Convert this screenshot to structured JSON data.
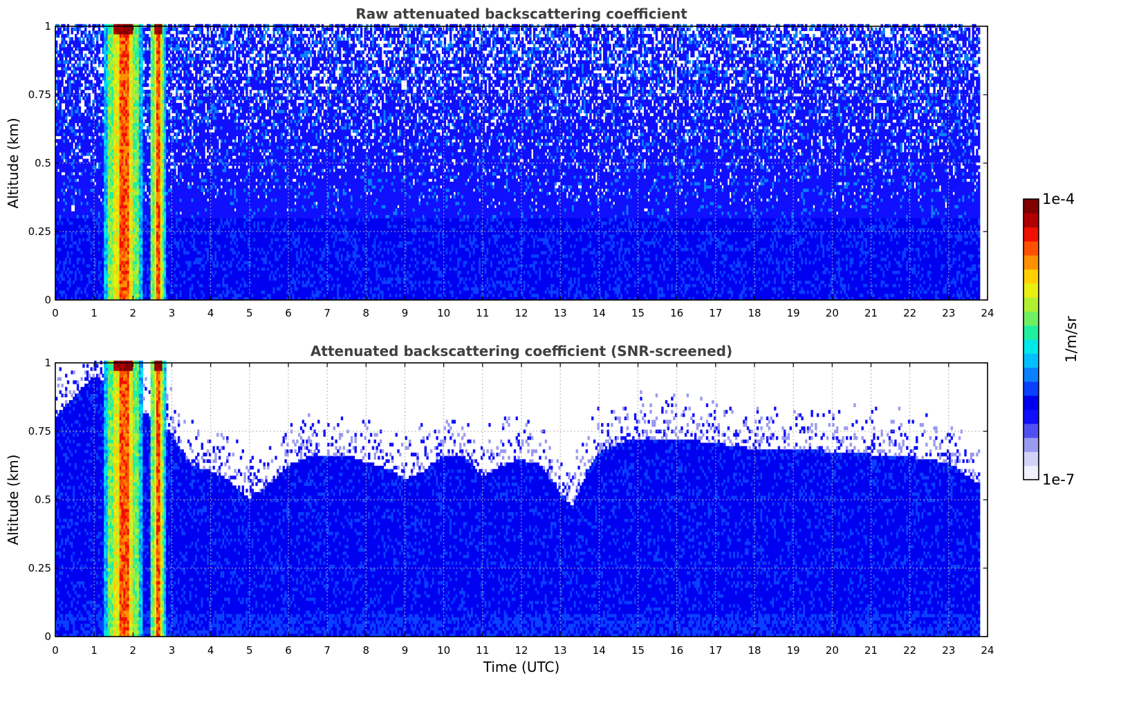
{
  "colorbar": {
    "max_label": "1e-4",
    "min_label": "1e-7",
    "unit_label": "1/m/sr",
    "colormap": [
      "#f0f0ff",
      "#d2d2f8",
      "#9a9af0",
      "#5050f0",
      "#1010ff",
      "#0000f0",
      "#0a40ff",
      "#0a80ff",
      "#00c0ff",
      "#00e8e8",
      "#20f0a0",
      "#70f060",
      "#b0f030",
      "#e8f010",
      "#ffd000",
      "#ff9000",
      "#ff5000",
      "#f01000",
      "#b00000",
      "#800000"
    ]
  },
  "chart_data": [
    {
      "type": "heatmap",
      "title": "Raw attenuated backscattering coefficient",
      "xlabel": "",
      "ylabel": "Altitude (km)",
      "xlim": [
        0,
        24
      ],
      "ylim": [
        0,
        1
      ],
      "xticks": [
        "0",
        "1",
        "2",
        "3",
        "4",
        "5",
        "6",
        "7",
        "8",
        "9",
        "10",
        "11",
        "12",
        "13",
        "14",
        "15",
        "16",
        "17",
        "18",
        "19",
        "20",
        "21",
        "22",
        "23",
        "24"
      ],
      "yticks": [
        "0",
        "0.25",
        "0.5",
        "0.75",
        "1"
      ],
      "grid": true,
      "data_end_time": 23.8,
      "plume_intervals": [
        [
          1.25,
          2.25
        ],
        [
          2.4,
          2.8
        ]
      ],
      "noise_start_altitude": 0.3,
      "screened_boundary": null
    },
    {
      "type": "heatmap",
      "title": "Attenuated backscattering coefficient (SNR-screened)",
      "xlabel": "Time (UTC)",
      "ylabel": "Altitude (km)",
      "xlim": [
        0,
        24
      ],
      "ylim": [
        0,
        1
      ],
      "xticks": [
        "0",
        "1",
        "2",
        "3",
        "4",
        "5",
        "6",
        "7",
        "8",
        "9",
        "10",
        "11",
        "12",
        "13",
        "14",
        "15",
        "16",
        "17",
        "18",
        "19",
        "20",
        "21",
        "22",
        "23",
        "24"
      ],
      "yticks": [
        "0",
        "0.25",
        "0.5",
        "0.75",
        "1"
      ],
      "grid": true,
      "data_end_time": 23.8,
      "plume_intervals": [
        [
          1.25,
          2.25
        ],
        [
          2.4,
          2.8
        ]
      ],
      "noise_start_altitude": null,
      "screened_boundary": {
        "time": [
          0,
          1,
          2.9,
          3.5,
          4,
          4.5,
          5,
          5.5,
          6,
          6.5,
          7,
          7.5,
          8,
          8.5,
          9,
          9.5,
          10,
          10.5,
          11,
          11.5,
          12,
          12.5,
          13,
          13.3,
          13.7,
          14,
          14.5,
          15,
          16,
          17,
          18,
          19,
          20,
          21,
          22,
          23,
          23.8
        ],
        "altitude": [
          0.8,
          0.95,
          0.75,
          0.62,
          0.6,
          0.56,
          0.5,
          0.55,
          0.62,
          0.65,
          0.66,
          0.66,
          0.63,
          0.61,
          0.57,
          0.6,
          0.66,
          0.66,
          0.58,
          0.62,
          0.64,
          0.62,
          0.52,
          0.47,
          0.6,
          0.67,
          0.7,
          0.72,
          0.72,
          0.7,
          0.68,
          0.68,
          0.67,
          0.66,
          0.65,
          0.63,
          0.55
        ]
      }
    }
  ]
}
